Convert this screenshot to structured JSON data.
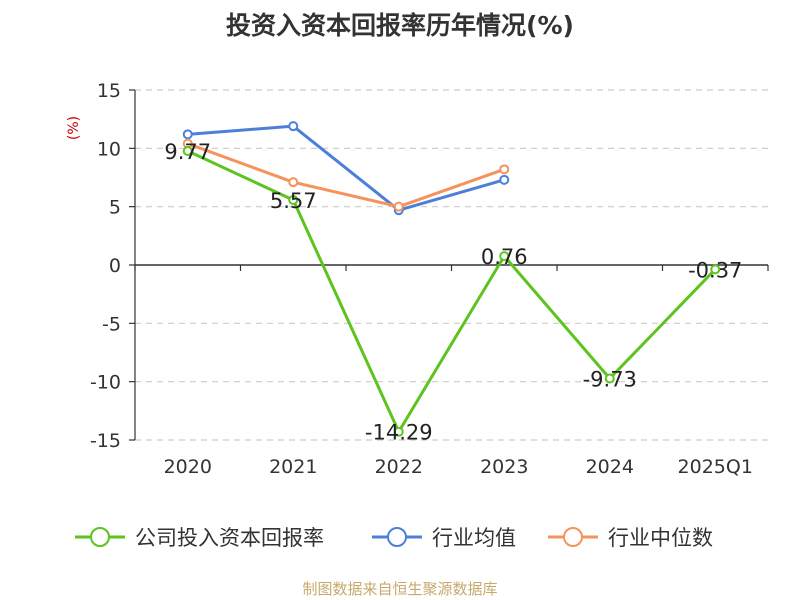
{
  "chart_data": {
    "type": "line",
    "title": "投资入资本回报率历年情况(%)",
    "ylabel": "(%)",
    "categories": [
      "2020",
      "2021",
      "2022",
      "2023",
      "2024",
      "2025Q1"
    ],
    "ylim": [
      -15,
      15
    ],
    "yticks": [
      15,
      10,
      5,
      0,
      -5,
      -10,
      -15
    ],
    "grid": true,
    "legend_position": "bottom",
    "series": [
      {
        "name": "公司投入资本回报率",
        "color": "#5cc31f",
        "values": [
          9.77,
          5.57,
          -14.29,
          0.76,
          -9.73,
          -0.37
        ],
        "labels": [
          "9.77",
          "5.57",
          "-14.29",
          "0.76",
          "-9.73",
          "-0.37"
        ]
      },
      {
        "name": "行业均值",
        "color": "#4e7fd8",
        "values": [
          11.2,
          11.9,
          4.7,
          7.3,
          null,
          null
        ]
      },
      {
        "name": "行业中位数",
        "color": "#f5935c",
        "values": [
          10.4,
          7.1,
          5.0,
          8.2,
          null,
          null
        ]
      }
    ]
  },
  "source": "制图数据来自恒生聚源数据库"
}
